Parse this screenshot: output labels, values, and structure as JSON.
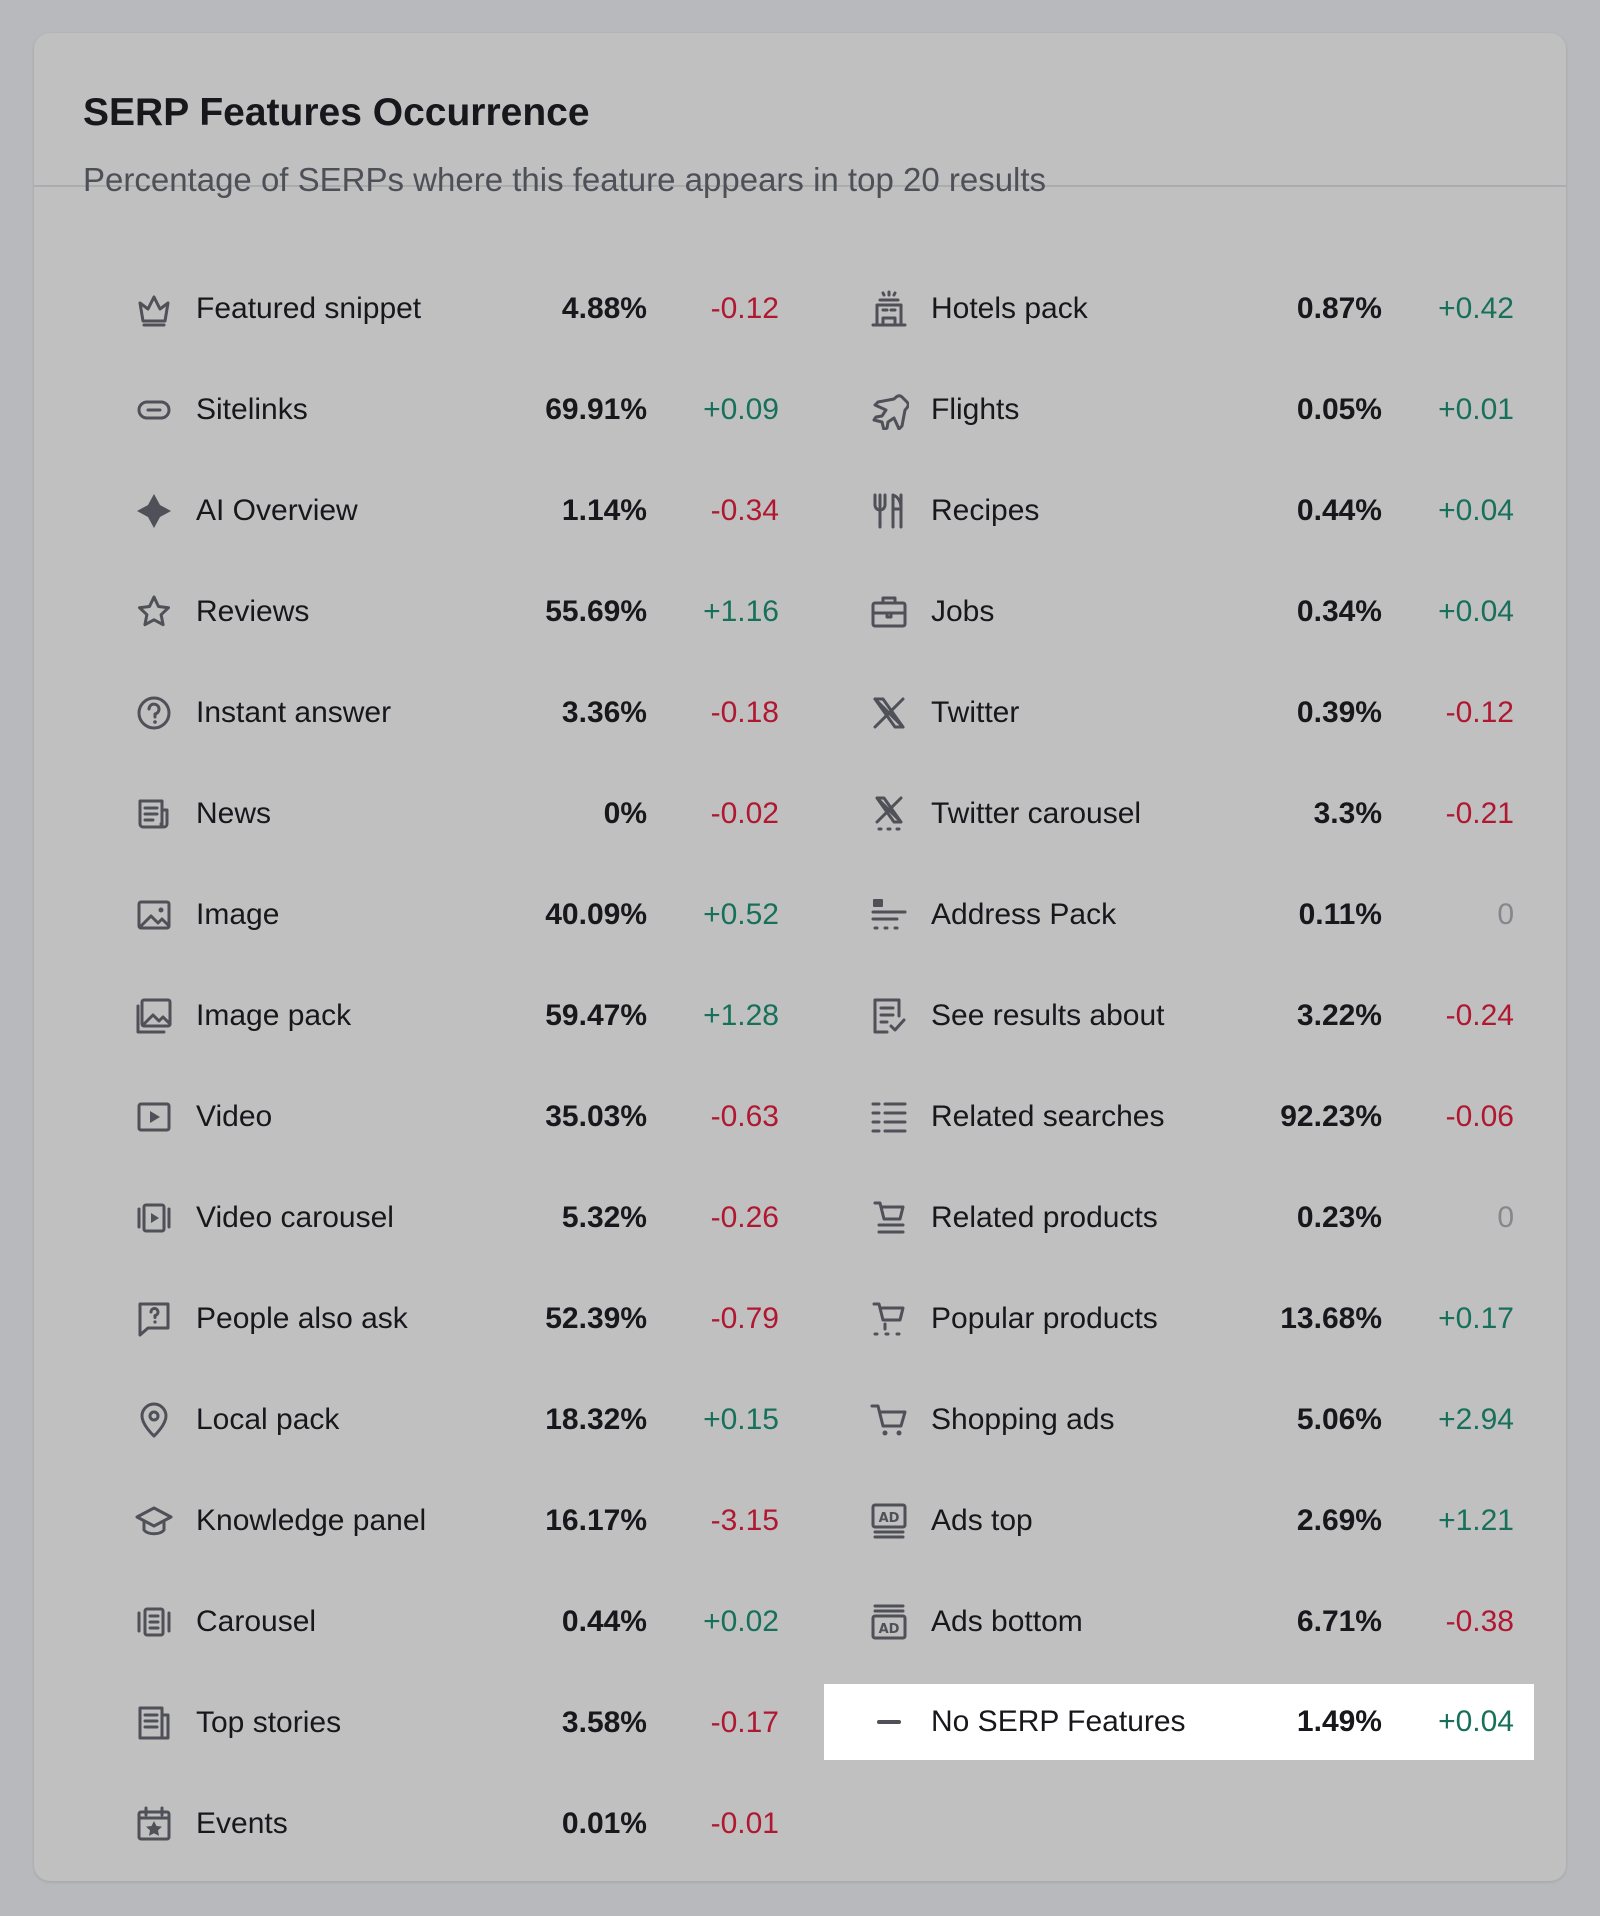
{
  "title": "SERP Features Occurrence",
  "subtitle": "Percentage of SERPs where this feature appears in top 20 results",
  "colors": {
    "positive": "#17705a",
    "negative": "#b01730",
    "zero": "#86878c",
    "icon": "#4f5058",
    "highlight_bg": "#ffffff"
  },
  "left": [
    {
      "label": "Featured snippet",
      "pct": "4.88%",
      "delta": "-0.12",
      "icon": "crown-icon"
    },
    {
      "label": "Sitelinks",
      "pct": "69.91%",
      "delta": "+0.09",
      "icon": "link-icon"
    },
    {
      "label": "AI Overview",
      "pct": "1.14%",
      "delta": "-0.34",
      "icon": "ai-sparkle-icon"
    },
    {
      "label": "Reviews",
      "pct": "55.69%",
      "delta": "+1.16",
      "icon": "star-icon"
    },
    {
      "label": "Instant answer",
      "pct": "3.36%",
      "delta": "-0.18",
      "icon": "question-circle-icon"
    },
    {
      "label": "News",
      "pct": "0%",
      "delta": "-0.02",
      "icon": "newspaper-icon"
    },
    {
      "label": "Image",
      "pct": "40.09%",
      "delta": "+0.52",
      "icon": "image-icon"
    },
    {
      "label": "Image pack",
      "pct": "59.47%",
      "delta": "+1.28",
      "icon": "image-pack-icon"
    },
    {
      "label": "Video",
      "pct": "35.03%",
      "delta": "-0.63",
      "icon": "video-icon"
    },
    {
      "label": "Video carousel",
      "pct": "5.32%",
      "delta": "-0.26",
      "icon": "video-carousel-icon"
    },
    {
      "label": "People also ask",
      "pct": "52.39%",
      "delta": "-0.79",
      "icon": "question-bubble-icon"
    },
    {
      "label": "Local pack",
      "pct": "18.32%",
      "delta": "+0.15",
      "icon": "map-pin-icon"
    },
    {
      "label": "Knowledge panel",
      "pct": "16.17%",
      "delta": "-3.15",
      "icon": "graduation-cap-icon"
    },
    {
      "label": "Carousel",
      "pct": "0.44%",
      "delta": "+0.02",
      "icon": "carousel-icon"
    },
    {
      "label": "Top stories",
      "pct": "3.58%",
      "delta": "-0.17",
      "icon": "top-stories-icon"
    },
    {
      "label": "Events",
      "pct": "0.01%",
      "delta": "-0.01",
      "icon": "calendar-star-icon"
    }
  ],
  "right": [
    {
      "label": "Hotels pack",
      "pct": "0.87%",
      "delta": "+0.42",
      "icon": "hotel-icon"
    },
    {
      "label": "Flights",
      "pct": "0.05%",
      "delta": "+0.01",
      "icon": "plane-icon"
    },
    {
      "label": "Recipes",
      "pct": "0.44%",
      "delta": "+0.04",
      "icon": "fork-knife-icon"
    },
    {
      "label": "Jobs",
      "pct": "0.34%",
      "delta": "+0.04",
      "icon": "briefcase-icon"
    },
    {
      "label": "Twitter",
      "pct": "0.39%",
      "delta": "-0.12",
      "icon": "x-logo-icon"
    },
    {
      "label": "Twitter carousel",
      "pct": "3.3%",
      "delta": "-0.21",
      "icon": "x-carousel-icon"
    },
    {
      "label": "Address Pack",
      "pct": "0.11%",
      "delta": "0",
      "icon": "address-pack-icon"
    },
    {
      "label": "See results about",
      "pct": "3.22%",
      "delta": "-0.24",
      "icon": "document-check-icon"
    },
    {
      "label": "Related searches",
      "pct": "92.23%",
      "delta": "-0.06",
      "icon": "list-icon"
    },
    {
      "label": "Related products",
      "pct": "0.23%",
      "delta": "0",
      "icon": "cart-list-icon"
    },
    {
      "label": "Popular products",
      "pct": "13.68%",
      "delta": "+0.17",
      "icon": "cart-stars-icon"
    },
    {
      "label": "Shopping ads",
      "pct": "5.06%",
      "delta": "+2.94",
      "icon": "shopping-cart-icon"
    },
    {
      "label": "Ads top",
      "pct": "2.69%",
      "delta": "+1.21",
      "icon": "ad-top-icon"
    },
    {
      "label": "Ads bottom",
      "pct": "6.71%",
      "delta": "-0.38",
      "icon": "ad-bottom-icon"
    },
    {
      "label": "No SERP Features",
      "pct": "1.49%",
      "delta": "+0.04",
      "icon": "minus-icon",
      "highlighted": true
    }
  ]
}
